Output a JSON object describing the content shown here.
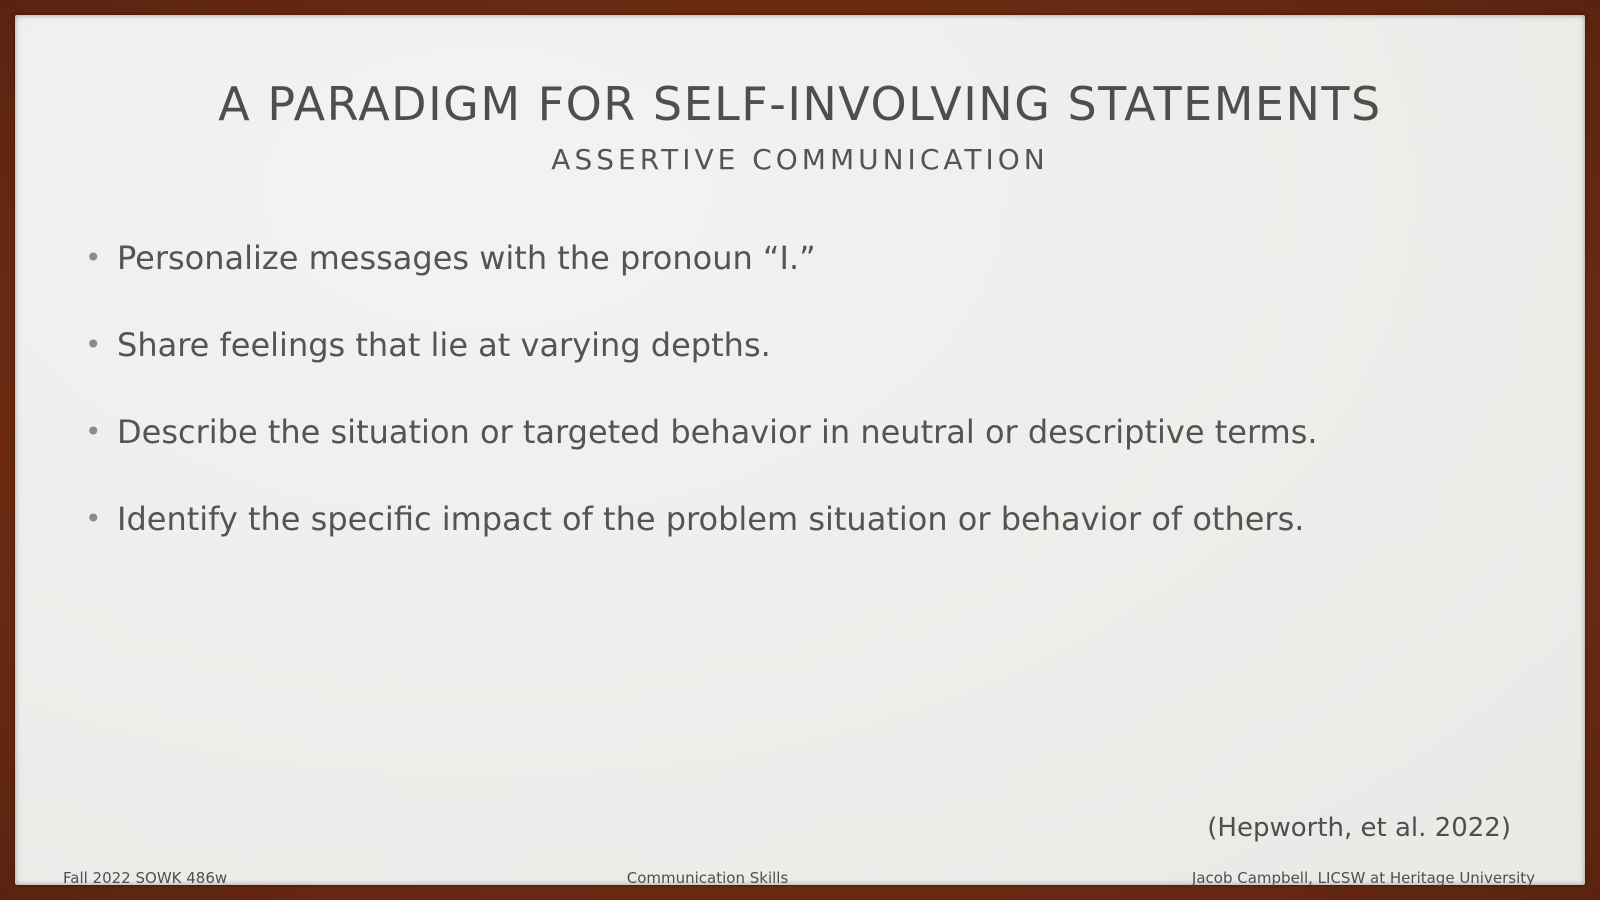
{
  "slide": {
    "title": "A PARADIGM FOR SELF-INVOLVING STATEMENTS",
    "subtitle": "ASSERTIVE COMMUNICATION",
    "bullet_symbol": "•",
    "bullets": [
      "Personalize messages with the pronoun “I.”",
      "Share feelings that lie at varying depths.",
      "Describe the situation or targeted behavior in neutral or descriptive terms.",
      "Identify the specific impact of the problem situation or behavior of others."
    ],
    "citation": "(Hepworth, et al. 2022)"
  },
  "footer": {
    "left": "Fall 2022 SOWK 486w",
    "center": "Communication Skills",
    "right": "Jacob Campbell, LICSW at Heritage University"
  },
  "colors": {
    "frame": "#6e2f15",
    "paper": "#efeeec",
    "text": "#555452"
  }
}
